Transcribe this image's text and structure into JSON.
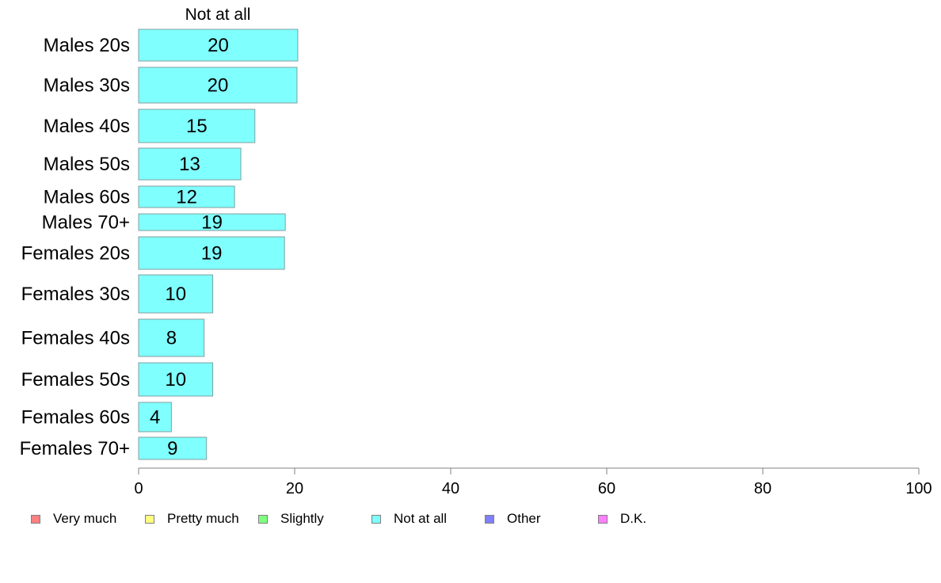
{
  "chart_data": {
    "type": "bar",
    "orientation": "horizontal",
    "stacked": true,
    "column_header": "Not at all",
    "categories": [
      "Males 20s",
      "Males 30s",
      "Males 40s",
      "Males 50s",
      "Males 60s",
      "Males 70+",
      "Females 20s",
      "Females 30s",
      "Females 40s",
      "Females 50s",
      "Females 60s",
      "Females 70+"
    ],
    "series": [
      {
        "name": "Very much",
        "color": "#ff8080",
        "values": [
          0,
          0,
          0,
          0,
          0,
          0,
          0,
          0,
          0,
          0,
          0,
          0
        ]
      },
      {
        "name": "Pretty much",
        "color": "#ffff80",
        "values": [
          0,
          0,
          0,
          0,
          0,
          0,
          0,
          0,
          0,
          0,
          0,
          0
        ]
      },
      {
        "name": "Slightly",
        "color": "#80ff80",
        "values": [
          0,
          0,
          0,
          0,
          0,
          0,
          0,
          0,
          0,
          0,
          0,
          0
        ]
      },
      {
        "name": "Not at all",
        "color": "#80ffff",
        "values": [
          20.4,
          20.3,
          14.9,
          13.1,
          12.3,
          18.8,
          18.7,
          9.5,
          8.4,
          9.5,
          4.2,
          8.7
        ]
      },
      {
        "name": "Other",
        "color": "#8080ff",
        "values": [
          0,
          0,
          0,
          0,
          0,
          0,
          0,
          0,
          0,
          0,
          0,
          0
        ]
      },
      {
        "name": "D.K.",
        "color": "#ff80ff",
        "values": [
          0,
          0,
          0,
          0,
          0,
          0,
          0,
          0,
          0,
          0,
          0,
          0
        ]
      }
    ],
    "data_labels": [
      "20",
      "20",
      "15",
      "13",
      "12",
      "19",
      "19",
      "10",
      "8",
      "10",
      "4",
      "9"
    ],
    "xlim": [
      0,
      100
    ],
    "xticks": [
      "0",
      "20",
      "40",
      "60",
      "80",
      "100"
    ],
    "legend_position": "bottom",
    "grid": false
  }
}
